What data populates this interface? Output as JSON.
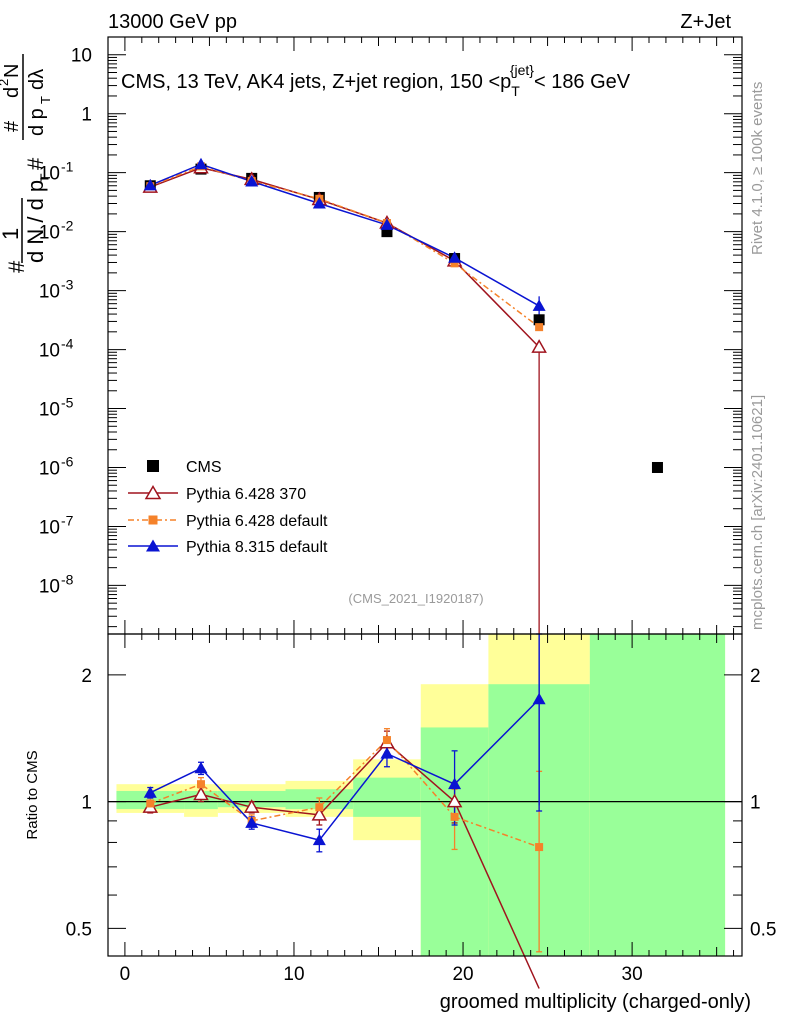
{
  "header": {
    "left": "13000 GeV pp",
    "right": "Z+Jet"
  },
  "side": {
    "rivet": "Rivet 4.1.0, ≥ 100k events",
    "mcplots": "mcplots.cern.ch [arXiv:2401.10621]"
  },
  "watermark": "(CMS_2021_I1920187)",
  "colors": {
    "cms": "#000000",
    "p6_370": "#a0141e",
    "p6_default": "#f5822a",
    "p8": "#0a14d2",
    "green_band": "#99ff99",
    "yellow_band": "#ffff99"
  },
  "chart_data": {
    "type": "line",
    "title": "CMS, 13 TeV, AK4 jets, Z+jet region, 150 <p_T^{jet}< 186 GeV",
    "title_parts": {
      "pre": "CMS, 13 TeV, AK4 jets, Z+jet region, 150 <p",
      "sub": "T",
      "sup": "{jet}",
      "post": "< 186 GeV"
    },
    "xlabel": "groomed multiplicity (charged-only)",
    "ylabel_main": "1/dN/dp_T # d²N/(dp_T dλ) #",
    "ylabel_ratio": "Ratio to CMS",
    "xlim": [
      -1,
      36.5
    ],
    "x_ticks": [
      0,
      10,
      20,
      30
    ],
    "main": {
      "yscale": "log",
      "ylim": [
        1.5e-09,
        20
      ],
      "y_ticks": [
        {
          "value": 1e-08,
          "base": "10",
          "exp": "-8"
        },
        {
          "value": 1e-07,
          "base": "10",
          "exp": "-7"
        },
        {
          "value": 1e-06,
          "base": "10",
          "exp": "-6"
        },
        {
          "value": 1e-05,
          "base": "10",
          "exp": "-5"
        },
        {
          "value": 0.0001,
          "base": "10",
          "exp": "-4"
        },
        {
          "value": 0.001,
          "base": "10",
          "exp": "-3"
        },
        {
          "value": 0.01,
          "base": "10",
          "exp": "-2"
        },
        {
          "value": 0.1,
          "base": "10",
          "exp": "-1"
        },
        {
          "value": 1,
          "base": "1",
          "exp": ""
        },
        {
          "value": 10,
          "base": "10",
          "exp": ""
        }
      ],
      "series": [
        {
          "name": "CMS",
          "style": "cms",
          "x": [
            1.5,
            4.5,
            7.5,
            11.5,
            15.5,
            19.5,
            24.5,
            31.5
          ],
          "y": [
            0.06,
            0.115,
            0.08,
            0.038,
            0.01,
            0.0035,
            0.00032,
            1e-06
          ]
        },
        {
          "name": "Pythia 6.428 370",
          "style": "p6_370",
          "x": [
            1.5,
            4.5,
            7.5,
            11.5,
            15.5,
            19.5,
            24.5
          ],
          "y": [
            0.057,
            0.121,
            0.077,
            0.035,
            0.014,
            0.0032,
            0.00011
          ]
        },
        {
          "name": "Pythia 6.428 default",
          "style": "p6_default",
          "x": [
            1.5,
            4.5,
            7.5,
            11.5,
            15.5,
            19.5,
            24.5
          ],
          "y": [
            0.059,
            0.128,
            0.072,
            0.036,
            0.014,
            0.0029,
            0.00024
          ]
        },
        {
          "name": "Pythia 8.315 default",
          "style": "p8",
          "x": [
            1.5,
            4.5,
            7.5,
            11.5,
            15.5,
            19.5,
            24.5
          ],
          "y": [
            0.061,
            0.139,
            0.071,
            0.03,
            0.013,
            0.0036,
            0.00055
          ]
        }
      ]
    },
    "ratio": {
      "yscale": "log",
      "ylim": [
        0.43,
        2.5
      ],
      "y_ticks": [
        0.5,
        1,
        2
      ],
      "bands": [
        {
          "x0": -0.5,
          "x1": 3.5,
          "yellow": [
            0.94,
            1.1
          ],
          "green": [
            0.96,
            1.06
          ]
        },
        {
          "x0": 3.5,
          "x1": 5.5,
          "yellow": [
            0.92,
            1.1
          ],
          "green": [
            0.96,
            1.06
          ]
        },
        {
          "x0": 5.5,
          "x1": 9.5,
          "yellow": [
            0.94,
            1.1
          ],
          "green": [
            0.97,
            1.06
          ]
        },
        {
          "x0": 9.5,
          "x1": 13.5,
          "yellow": [
            0.92,
            1.12
          ],
          "green": [
            0.96,
            1.07
          ]
        },
        {
          "x0": 13.5,
          "x1": 17.5,
          "yellow": [
            0.81,
            1.26
          ],
          "green": [
            0.92,
            1.14
          ]
        },
        {
          "x0": 17.5,
          "x1": 21.5,
          "yellow": [
            0.43,
            1.9
          ],
          "green": [
            0.43,
            1.5
          ]
        },
        {
          "x0": 21.5,
          "x1": 27.5,
          "yellow": [
            0.43,
            2.5
          ],
          "green": [
            0.43,
            1.9
          ]
        },
        {
          "x0": 27.5,
          "x1": 35.5,
          "yellow": [
            0.43,
            2.5
          ],
          "green": [
            0.43,
            2.5
          ]
        }
      ],
      "series": [
        {
          "name": "Pythia 6.428 370",
          "style": "p6_370",
          "x": [
            1.5,
            4.5,
            7.5,
            11.5,
            15.5,
            19.5,
            24.5
          ],
          "y": [
            0.97,
            1.04,
            0.97,
            0.93,
            1.38,
            1.0,
            0.36
          ],
          "err": [
            0.03,
            0.04,
            0.03,
            0.05,
            0.09,
            0.11,
            0
          ]
        },
        {
          "name": "Pythia 6.428 default",
          "style": "p6_default",
          "x": [
            1.5,
            4.5,
            7.5,
            11.5,
            15.5,
            19.5,
            24.5
          ],
          "y": [
            0.99,
            1.1,
            0.9,
            0.97,
            1.4,
            0.92,
            0.78
          ],
          "err": [
            0.03,
            0.04,
            0.03,
            0.05,
            0.09,
            0.15,
            0.4
          ]
        },
        {
          "name": "Pythia 8.315 default",
          "style": "p8",
          "x": [
            1.5,
            4.5,
            7.5,
            11.5,
            15.5,
            19.5,
            24.5
          ],
          "y": [
            1.05,
            1.2,
            0.89,
            0.81,
            1.3,
            1.1,
            1.75
          ],
          "err": [
            0.03,
            0.04,
            0.03,
            0.05,
            0.09,
            0.22,
            0.8
          ]
        }
      ]
    }
  }
}
